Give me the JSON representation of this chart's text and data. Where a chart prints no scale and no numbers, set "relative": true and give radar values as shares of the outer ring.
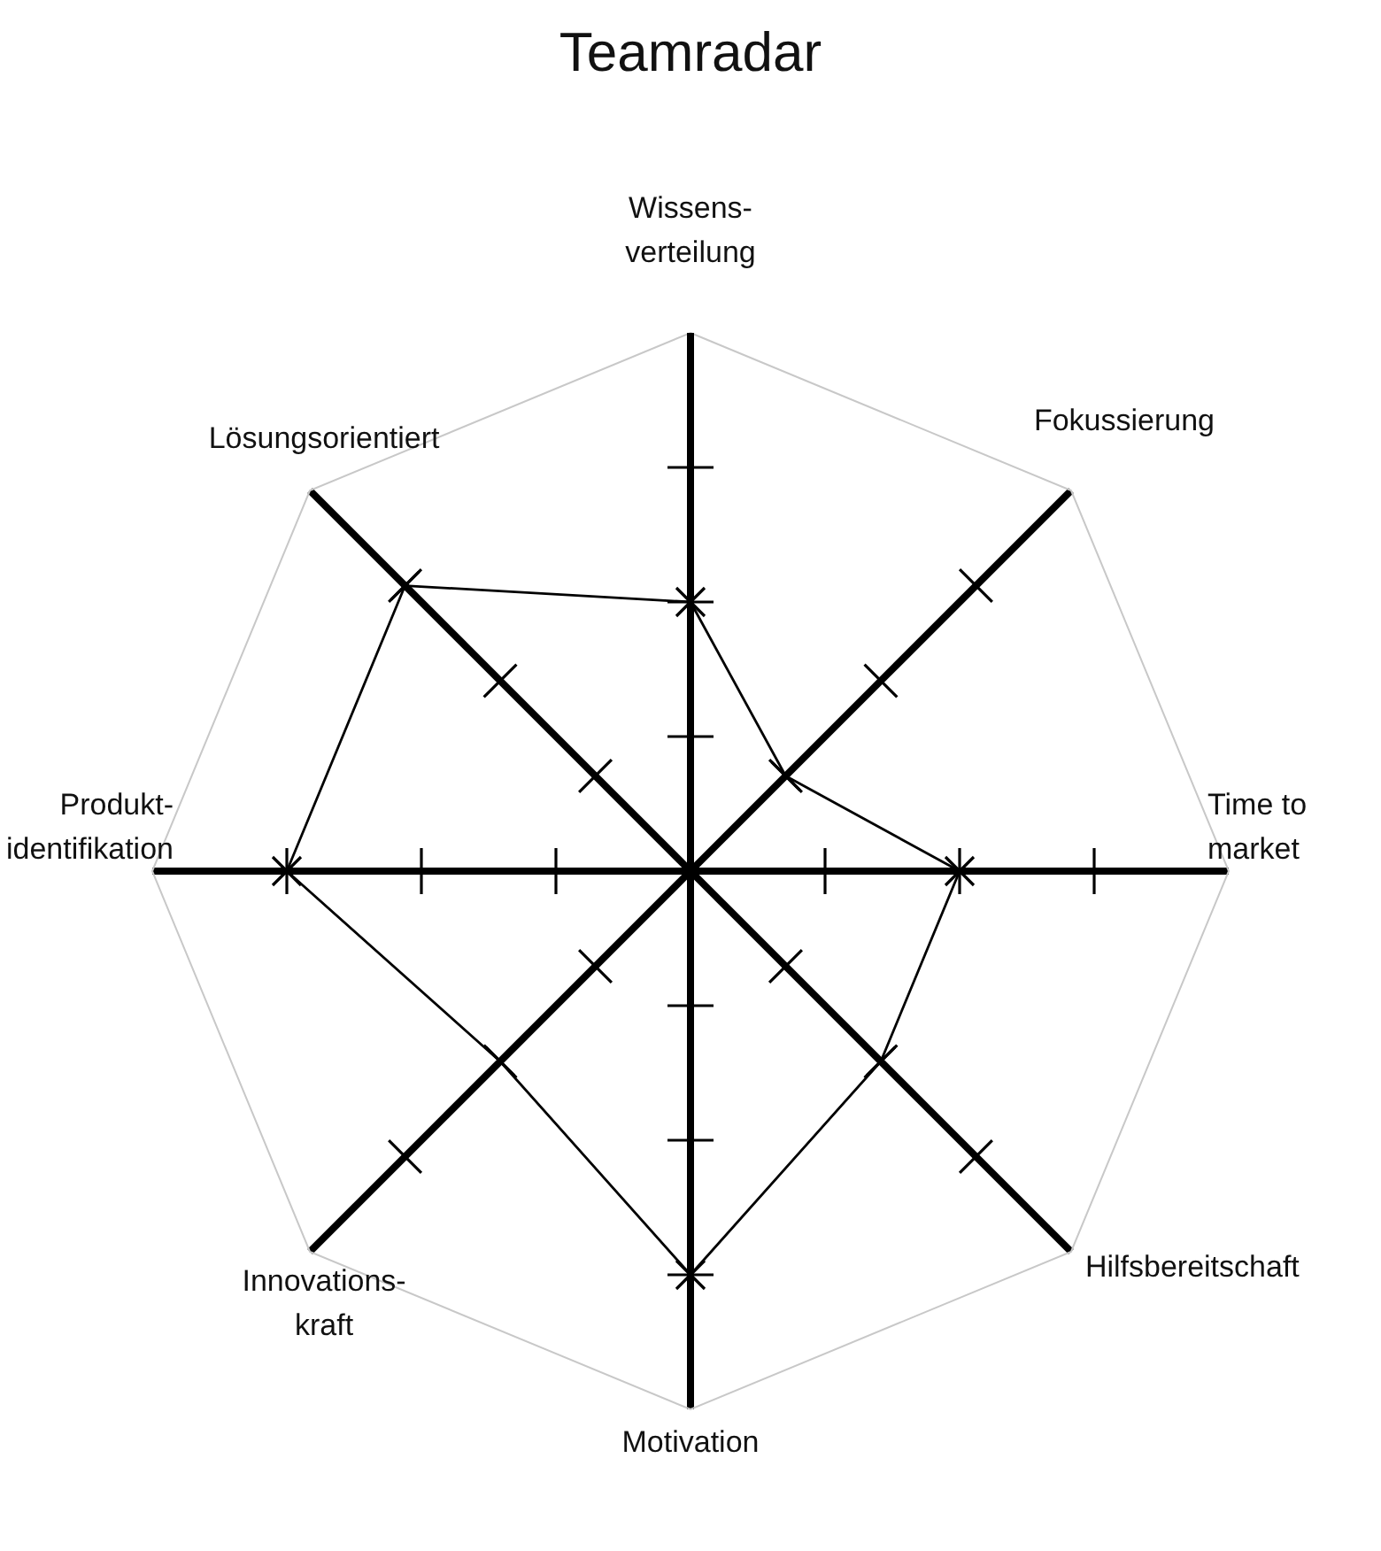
{
  "chart_data": {
    "type": "radar",
    "title": "Teamradar",
    "categories": [
      "Wissens-\nverteilung",
      "Fokussierung",
      "Time to\nmarket",
      "Hilfsbereitschaft",
      "Motivation",
      "Innovations-\nkraft",
      "Produkt-\nidentifikation",
      "Lösungsorientiert"
    ],
    "relative": true,
    "series": [
      {
        "color": "#000000",
        "values": [
          0.5,
          0.25,
          0.5,
          0.5,
          0.75,
          0.5,
          0.75,
          0.75
        ]
      }
    ],
    "marker": "cross",
    "line_style": "solid"
  }
}
